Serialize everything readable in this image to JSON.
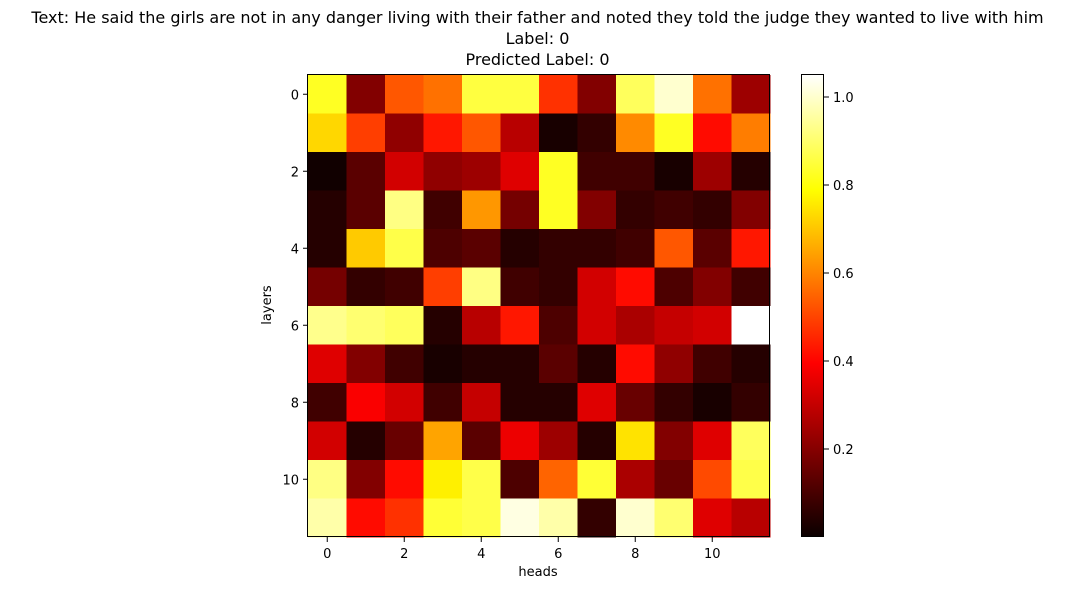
{
  "title": {
    "line1": "Text: He said the girls are not in any danger living with their father and noted they told the judge they wanted to live with him",
    "line2": "Label: 0",
    "line3": "Predicted Label: 0"
  },
  "chart_data": {
    "type": "heatmap",
    "colormap": "hot",
    "xlabel": "heads",
    "ylabel": "layers",
    "x_ticks": [
      0,
      2,
      4,
      6,
      8,
      10
    ],
    "y_ticks": [
      0,
      2,
      4,
      6,
      8,
      10
    ],
    "colorbar": {
      "range": [
        0.0,
        1.05
      ],
      "ticks": [
        0.2,
        0.4,
        0.6,
        0.8,
        1.0
      ]
    },
    "values": [
      [
        0.82,
        0.18,
        0.52,
        0.56,
        0.85,
        0.85,
        0.46,
        0.18,
        0.88,
        1.0,
        0.56,
        0.22
      ],
      [
        0.72,
        0.48,
        0.2,
        0.42,
        0.52,
        0.26,
        0.02,
        0.06,
        0.6,
        0.82,
        0.4,
        0.58
      ],
      [
        0.01,
        0.12,
        0.3,
        0.2,
        0.22,
        0.32,
        0.82,
        0.08,
        0.08,
        0.02,
        0.22,
        0.04
      ],
      [
        0.04,
        0.12,
        0.92,
        0.08,
        0.62,
        0.16,
        0.82,
        0.18,
        0.06,
        0.08,
        0.06,
        0.18
      ],
      [
        0.04,
        0.7,
        0.86,
        0.1,
        0.12,
        0.04,
        0.06,
        0.06,
        0.08,
        0.52,
        0.12,
        0.42
      ],
      [
        0.16,
        0.06,
        0.08,
        0.48,
        0.92,
        0.08,
        0.06,
        0.3,
        0.4,
        0.1,
        0.18,
        0.08
      ],
      [
        0.93,
        0.9,
        0.88,
        0.04,
        0.26,
        0.42,
        0.1,
        0.3,
        0.24,
        0.28,
        0.3,
        1.05
      ],
      [
        0.32,
        0.18,
        0.08,
        0.02,
        0.04,
        0.04,
        0.12,
        0.04,
        0.4,
        0.2,
        0.08,
        0.04
      ],
      [
        0.08,
        0.36,
        0.3,
        0.08,
        0.28,
        0.04,
        0.04,
        0.32,
        0.14,
        0.06,
        0.02,
        0.06
      ],
      [
        0.3,
        0.04,
        0.14,
        0.64,
        0.12,
        0.34,
        0.22,
        0.04,
        0.74,
        0.18,
        0.32,
        0.88
      ],
      [
        0.92,
        0.18,
        0.4,
        0.76,
        0.86,
        0.1,
        0.54,
        0.84,
        0.24,
        0.14,
        0.5,
        0.86
      ],
      [
        0.96,
        0.4,
        0.46,
        0.84,
        0.86,
        1.02,
        0.96,
        0.06,
        1.0,
        0.9,
        0.32,
        0.26
      ]
    ]
  }
}
